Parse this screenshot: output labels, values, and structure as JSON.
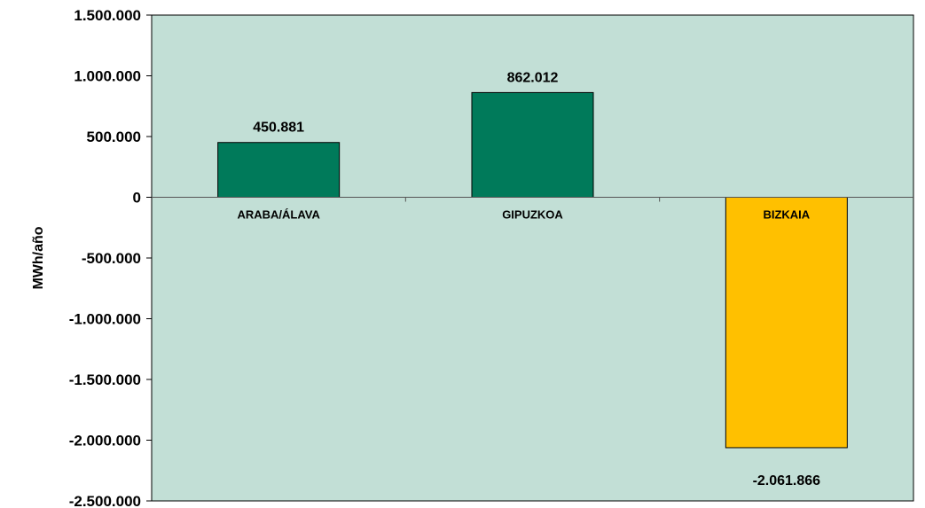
{
  "chart_data": {
    "type": "bar",
    "title": "",
    "xlabel": "",
    "ylabel": "MWh/año",
    "categories": [
      "ARABA/ÁLAVA",
      "GIPUZKOA",
      "BIZKAIA"
    ],
    "values": [
      450881,
      862012,
      -2061866
    ],
    "value_labels": [
      "450.881",
      "862.012",
      "-2.061.866"
    ],
    "ylim": [
      -2500000,
      1500000
    ],
    "yticks": [
      1500000,
      1000000,
      500000,
      0,
      -500000,
      -1000000,
      -1500000,
      -2000000,
      -2500000
    ],
    "ytick_labels": [
      "1.500.000",
      "1.000.000",
      "500.000",
      "0",
      "-500.000",
      "-1.000.000",
      "-1.500.000",
      "-2.000.000",
      "-2.500.000"
    ],
    "grid": false,
    "legend": "none",
    "colors": {
      "plot_background": "#c2dfd6",
      "positive_bar": "#007a5a",
      "negative_bar": "#ffc000",
      "bar_outline": "#000000"
    }
  }
}
